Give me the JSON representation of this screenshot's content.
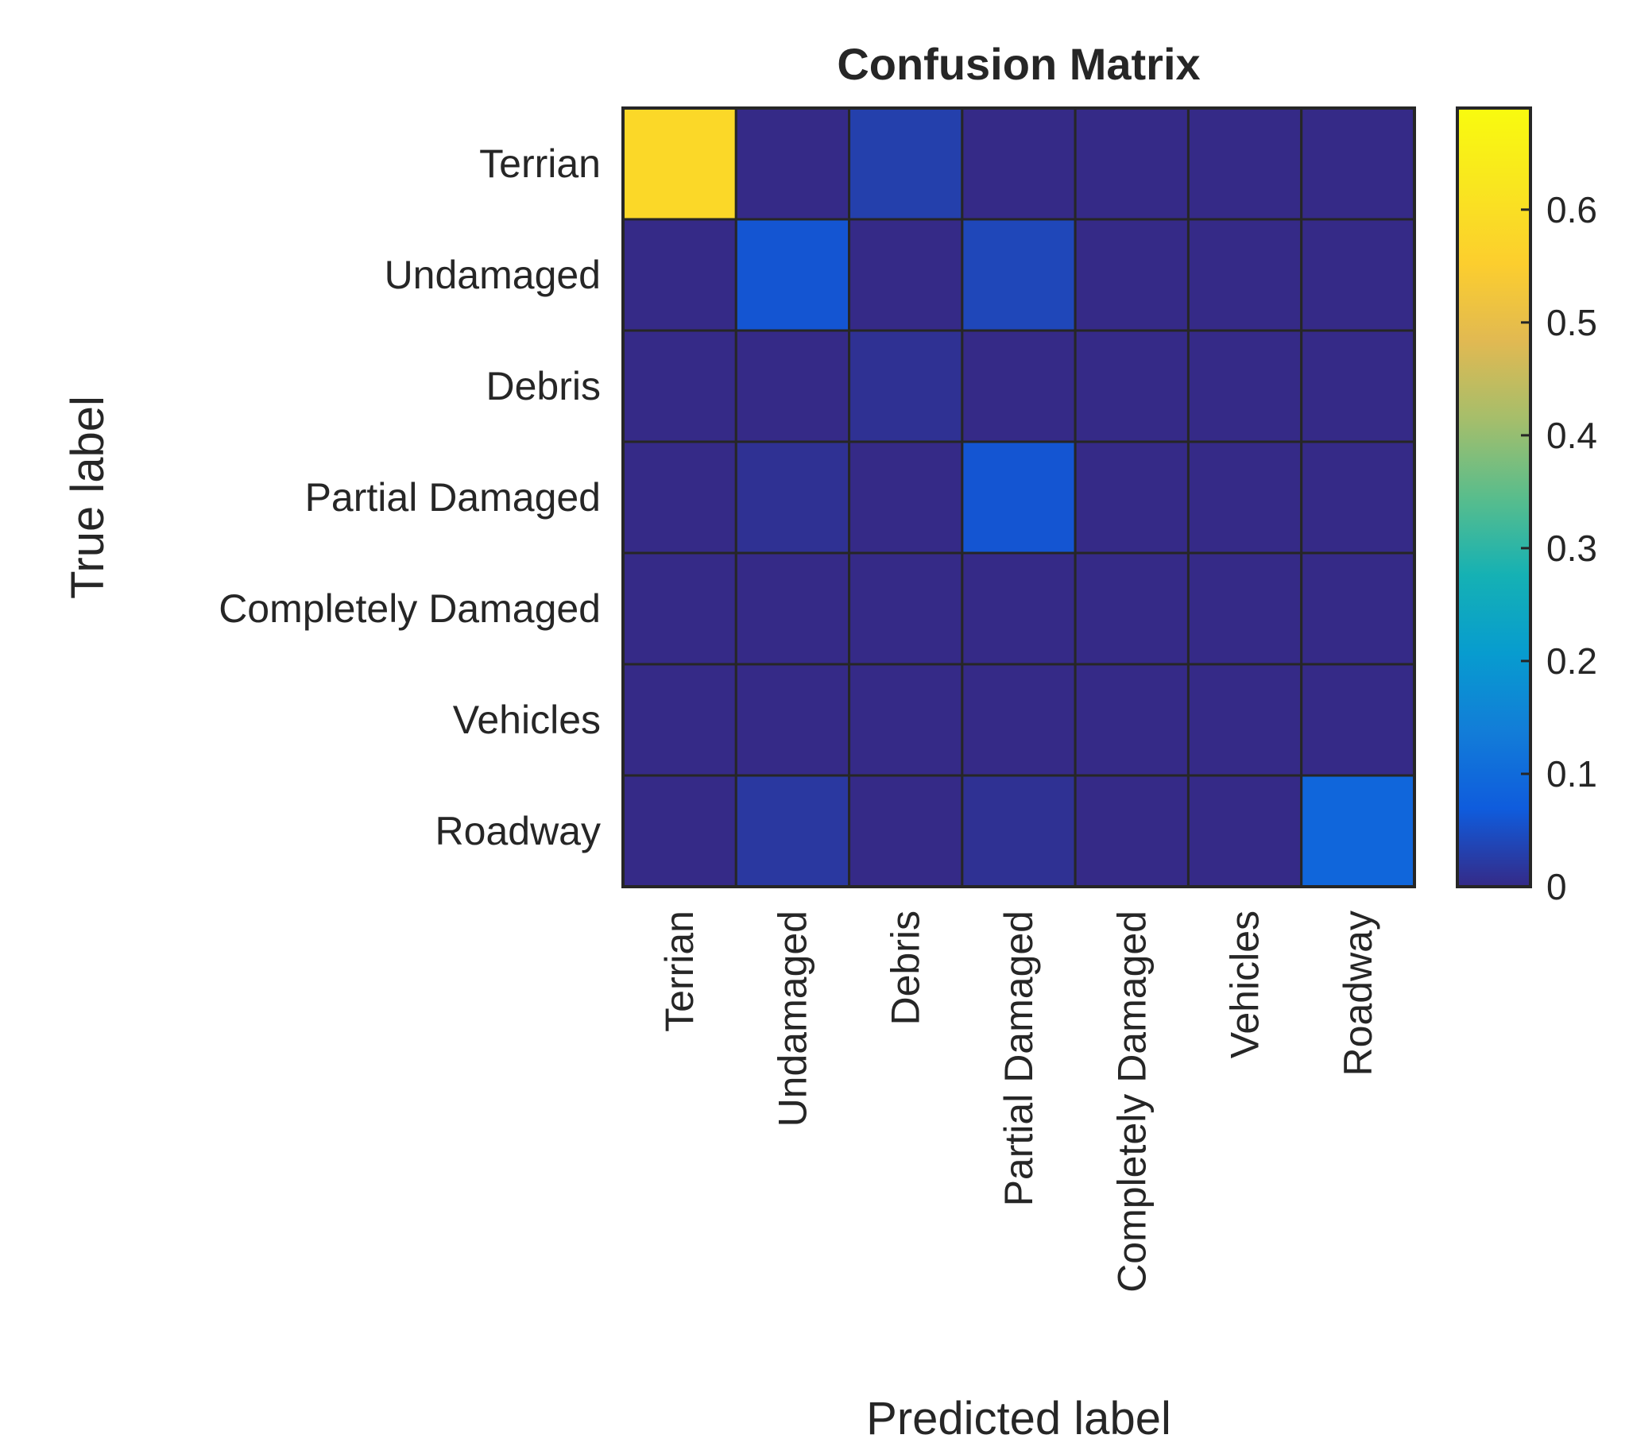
{
  "chart_data": {
    "type": "heatmap",
    "title": "Confusion Matrix",
    "xlabel": "Predicted label",
    "ylabel": "True label",
    "x_categories": [
      "Terrian",
      "Undamaged",
      "Debris",
      "Partial Damaged",
      "Completely Damaged",
      "Vehicles",
      "Roadway"
    ],
    "y_categories": [
      "Terrian",
      "Undamaged",
      "Debris",
      "Partial Damaged",
      "Completely Damaged",
      "Vehicles",
      "Roadway"
    ],
    "values": [
      [
        0.58,
        0.0,
        0.03,
        0.0,
        0.0,
        0.0,
        0.0
      ],
      [
        0.0,
        0.06,
        0.0,
        0.04,
        0.0,
        0.0,
        0.0
      ],
      [
        0.0,
        0.0,
        0.01,
        0.0,
        0.0,
        0.0,
        0.0
      ],
      [
        0.0,
        0.01,
        0.0,
        0.06,
        0.0,
        0.0,
        0.0
      ],
      [
        0.0,
        0.0,
        0.0,
        0.0,
        0.0,
        0.0,
        0.0
      ],
      [
        0.0,
        0.0,
        0.0,
        0.0,
        0.0,
        0.0,
        0.0
      ],
      [
        0.0,
        0.02,
        0.0,
        0.01,
        0.0,
        0.0,
        0.09
      ]
    ],
    "colorbar": {
      "range": [
        0,
        0.69
      ],
      "ticks": [
        0,
        0.1,
        0.2,
        0.3,
        0.4,
        0.5,
        0.6
      ],
      "tick_labels": [
        "0",
        "0.1",
        "0.2",
        "0.3",
        "0.4",
        "0.5",
        "0.6"
      ],
      "colormap": "parula"
    },
    "grid": true
  },
  "colors": {
    "cell_border": "#262626",
    "text": "#262626",
    "background": "#ffffff"
  }
}
